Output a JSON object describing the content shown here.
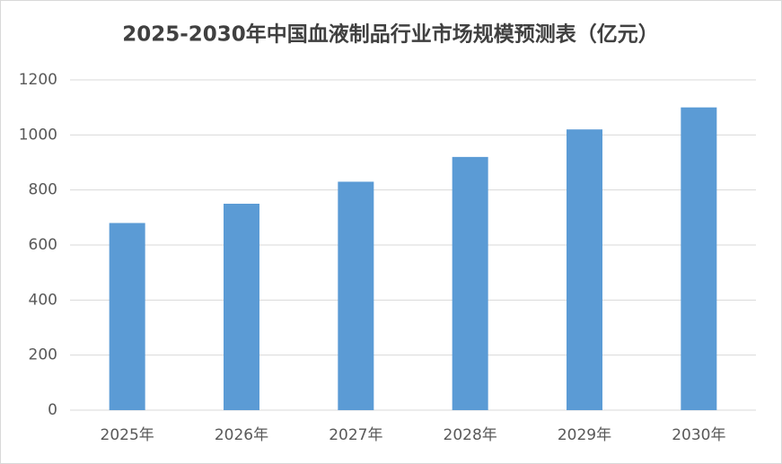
{
  "chart_data": {
    "type": "bar",
    "title": "2025-2030年中国血液制品行业市场规模预测表（亿元）",
    "categories": [
      "2025年",
      "2026年",
      "2027年",
      "2028年",
      "2029年",
      "2030年"
    ],
    "values": [
      680,
      750,
      830,
      920,
      1020,
      1100
    ],
    "color": "#5b9bd5",
    "ylim": [
      0,
      1200
    ],
    "yticks": [
      0,
      200,
      400,
      600,
      800,
      1000,
      1200
    ],
    "grid": true
  }
}
